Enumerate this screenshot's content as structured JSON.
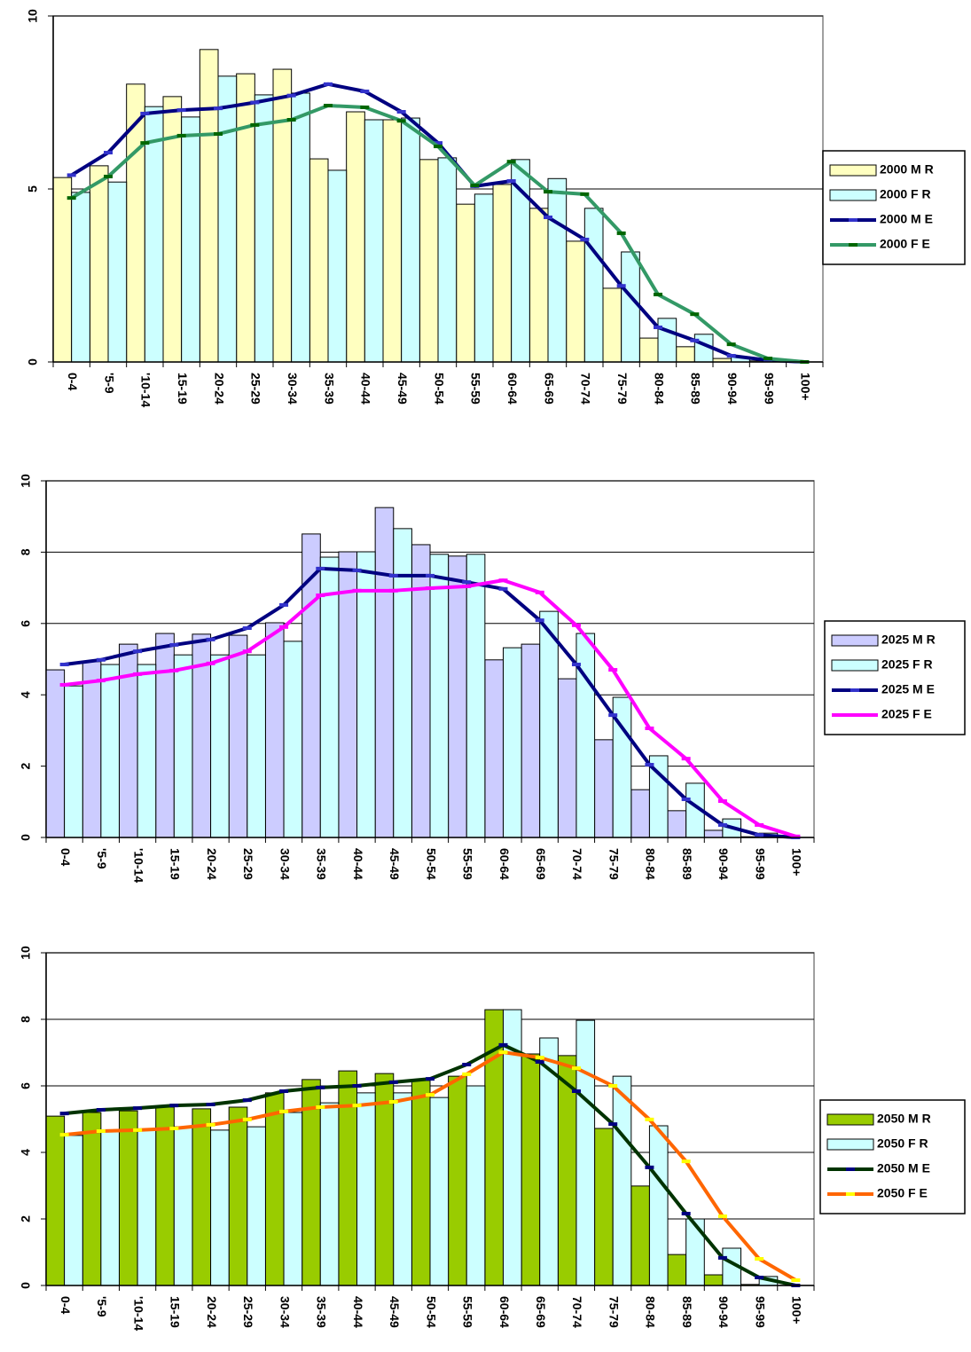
{
  "chart_data": [
    {
      "type": "bar",
      "legend": "right",
      "grid": true,
      "ylim": [
        0,
        10
      ],
      "yticks": [
        0,
        5,
        10
      ],
      "categories": [
        "0-4",
        "'5-9",
        "'10-14",
        "15-19",
        "20-24",
        "25-29",
        "30-34",
        "35-39",
        "40-44",
        "45-49",
        "50-54",
        "55-59",
        "60-64",
        "65-69",
        "70-74",
        "75-79",
        "80-84",
        "85-89",
        "90-94",
        "95-99",
        "100+"
      ],
      "series": [
        {
          "name": "2000 M R",
          "type": "bar",
          "color": "#ffffc0",
          "values": [
            5.33,
            5.67,
            8.03,
            7.67,
            9.03,
            8.33,
            8.46,
            5.87,
            7.23,
            7.0,
            5.85,
            4.56,
            5.13,
            4.44,
            3.49,
            2.13,
            0.69,
            0.44,
            0.1,
            0.03,
            0
          ]
        },
        {
          "name": "2000 F R",
          "type": "bar",
          "color": "#ccffff",
          "values": [
            4.9,
            5.2,
            7.38,
            7.08,
            8.26,
            7.72,
            7.77,
            5.54,
            7.0,
            7.05,
            5.9,
            4.85,
            5.85,
            5.3,
            4.44,
            3.18,
            1.26,
            0.8,
            0.15,
            0.05,
            0
          ]
        },
        {
          "name": "2000 M E",
          "type": "line",
          "color": "#000080",
          "marker_color": "#3333cc",
          "values": [
            5.4,
            6.05,
            7.18,
            7.28,
            7.33,
            7.5,
            7.7,
            8.03,
            7.82,
            7.23,
            6.33,
            5.08,
            5.23,
            4.18,
            3.54,
            2.2,
            1.0,
            0.62,
            0.18,
            0.05,
            0
          ]
        },
        {
          "name": "2000 F E",
          "type": "line",
          "color": "#339966",
          "marker_color": "#006600",
          "values": [
            4.74,
            5.36,
            6.33,
            6.54,
            6.59,
            6.85,
            7.0,
            7.41,
            7.36,
            6.97,
            6.23,
            5.1,
            5.79,
            4.92,
            4.85,
            3.72,
            1.95,
            1.38,
            0.51,
            0.1,
            0
          ]
        }
      ]
    },
    {
      "type": "bar",
      "legend": "right",
      "grid": true,
      "ylim": [
        0,
        10
      ],
      "yticks": [
        0,
        2,
        4,
        6,
        8,
        10
      ],
      "categories": [
        "0-4",
        "'5-9",
        "'10-14",
        "15-19",
        "20-24",
        "25-29",
        "30-34",
        "35-39",
        "40-44",
        "45-49",
        "50-54",
        "55-59",
        "60-64",
        "65-69",
        "70-74",
        "75-79",
        "80-84",
        "85-89",
        "90-94",
        "95-99",
        "100+"
      ],
      "series": [
        {
          "name": "2025 M R",
          "type": "bar",
          "color": "#ccccff",
          "values": [
            4.7,
            4.93,
            5.42,
            5.72,
            5.7,
            5.67,
            6.02,
            8.51,
            8.01,
            9.25,
            8.21,
            7.89,
            4.98,
            5.42,
            4.45,
            2.74,
            1.34,
            0.75,
            0.2,
            0.02,
            0
          ]
        },
        {
          "name": "2025 F R",
          "type": "bar",
          "color": "#ccffff",
          "values": [
            4.25,
            4.85,
            4.85,
            5.12,
            5.12,
            5.12,
            5.5,
            7.86,
            8.01,
            8.66,
            7.94,
            7.94,
            5.32,
            6.34,
            5.72,
            3.93,
            2.29,
            1.52,
            0.52,
            0.12,
            0
          ]
        },
        {
          "name": "2025 M E",
          "type": "line",
          "color": "#000080",
          "marker_color": "#3333cc",
          "values": [
            4.85,
            4.98,
            5.22,
            5.4,
            5.55,
            5.87,
            6.52,
            7.54,
            7.49,
            7.34,
            7.34,
            7.16,
            6.97,
            6.09,
            4.85,
            3.43,
            2.04,
            1.07,
            0.35,
            0.07,
            0
          ]
        },
        {
          "name": "2025 F E",
          "type": "line",
          "color": "#ff00ff",
          "marker_color": "#ff00ff",
          "values": [
            4.28,
            4.4,
            4.58,
            4.68,
            4.88,
            5.22,
            5.9,
            6.79,
            6.92,
            6.92,
            6.99,
            7.04,
            7.21,
            6.87,
            5.95,
            4.7,
            3.06,
            2.21,
            1.02,
            0.35,
            0.03
          ]
        }
      ]
    },
    {
      "type": "bar",
      "legend": "right",
      "grid": true,
      "ylim": [
        0,
        10
      ],
      "yticks": [
        0,
        2,
        4,
        6,
        8,
        10
      ],
      "categories": [
        "0-4",
        "'5-9",
        "'10-14",
        "15-19",
        "20-24",
        "25-29",
        "30-34",
        "35-39",
        "40-44",
        "45-49",
        "50-54",
        "55-59",
        "60-64",
        "65-69",
        "70-74",
        "75-79",
        "80-84",
        "85-89",
        "90-94",
        "95-99",
        "100+"
      ],
      "series": [
        {
          "name": "2050 M R",
          "type": "bar",
          "color": "#99cc00",
          "values": [
            5.09,
            5.2,
            5.25,
            5.36,
            5.31,
            5.36,
            5.79,
            6.19,
            6.45,
            6.37,
            6.16,
            6.29,
            8.29,
            6.96,
            6.91,
            4.72,
            2.99,
            0.93,
            0.32,
            0.03,
            0
          ]
        },
        {
          "name": "2050 F R",
          "type": "bar",
          "color": "#ccffff",
          "values": [
            4.51,
            4.64,
            4.69,
            4.77,
            4.67,
            4.77,
            5.2,
            5.49,
            5.79,
            5.79,
            5.65,
            6.0,
            8.29,
            7.44,
            7.97,
            6.29,
            4.8,
            2.0,
            1.12,
            0.27,
            0
          ]
        },
        {
          "name": "2050 M E",
          "type": "line",
          "color": "#003300",
          "marker_color": "#000080",
          "values": [
            5.17,
            5.28,
            5.33,
            5.41,
            5.44,
            5.57,
            5.84,
            5.95,
            6.0,
            6.11,
            6.21,
            6.64,
            7.23,
            6.72,
            5.84,
            4.85,
            3.55,
            2.16,
            0.83,
            0.24,
            0
          ]
        },
        {
          "name": "2050 F E",
          "type": "line",
          "color": "#ff6600",
          "marker_color": "#ffff00",
          "values": [
            4.53,
            4.64,
            4.67,
            4.72,
            4.83,
            4.99,
            5.23,
            5.36,
            5.41,
            5.52,
            5.73,
            6.35,
            7.01,
            6.85,
            6.53,
            6.0,
            4.99,
            3.73,
            2.08,
            0.8,
            0.16
          ]
        }
      ]
    }
  ]
}
